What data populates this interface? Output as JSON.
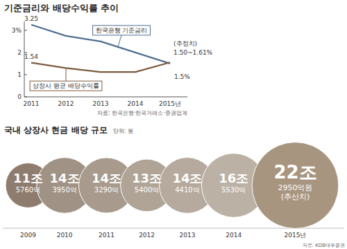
{
  "chart_data": [
    {
      "type": "line",
      "title": "기준금리와 배당수익률 추이",
      "categories": [
        "2011",
        "2012",
        "2013",
        "2014",
        "2015년"
      ],
      "series": [
        {
          "name": "한국은행 기준금리",
          "color": "#4f6f8f",
          "values": [
            3.25,
            2.75,
            2.5,
            2.0,
            1.5
          ],
          "value_labels": [
            "3.25",
            null,
            null,
            null,
            "1.5%"
          ]
        },
        {
          "name": "상장사 평균 배당수익률",
          "color": "#7b5b3e",
          "values": [
            1.54,
            1.3,
            1.12,
            1.12,
            1.55
          ],
          "value_labels": [
            "1.54",
            null,
            null,
            null,
            null
          ]
        }
      ],
      "annotations": [
        "(추정치)",
        "1.50~1.61%"
      ],
      "ylim": [
        0,
        3.4
      ],
      "yticks": [
        0,
        1,
        2,
        {
          "value": 3,
          "label": "3%"
        }
      ],
      "grid": false,
      "source": "자료: 한국은행·한국거래소·증권업계"
    },
    {
      "type": "bubble",
      "title": "국내 상장사 현금 배당 규모",
      "subtitle": "단위: 원",
      "categories": [
        "2009",
        "2010",
        "2011",
        "2012",
        "2013",
        "2014",
        "2015년"
      ],
      "values": [
        11.576,
        14.395,
        14.329,
        13.54,
        14.441,
        16.553,
        22.295
      ],
      "value_labels": [
        "11조 5760억",
        "14조 3950억",
        "14조 3290억",
        "13조 5400억",
        "14조 4410억",
        "16조 5530억",
        "22조 2950억원 (추산치)"
      ],
      "colors": [
        "#8e7d6f",
        "#a09284",
        "#a89b8e",
        "#b0a497",
        "#b6aa9e",
        "#bcb1a5",
        "#a8957f"
      ],
      "data_labels": true,
      "tick_labels": "x",
      "source": "자료: KDB대우증권"
    }
  ]
}
